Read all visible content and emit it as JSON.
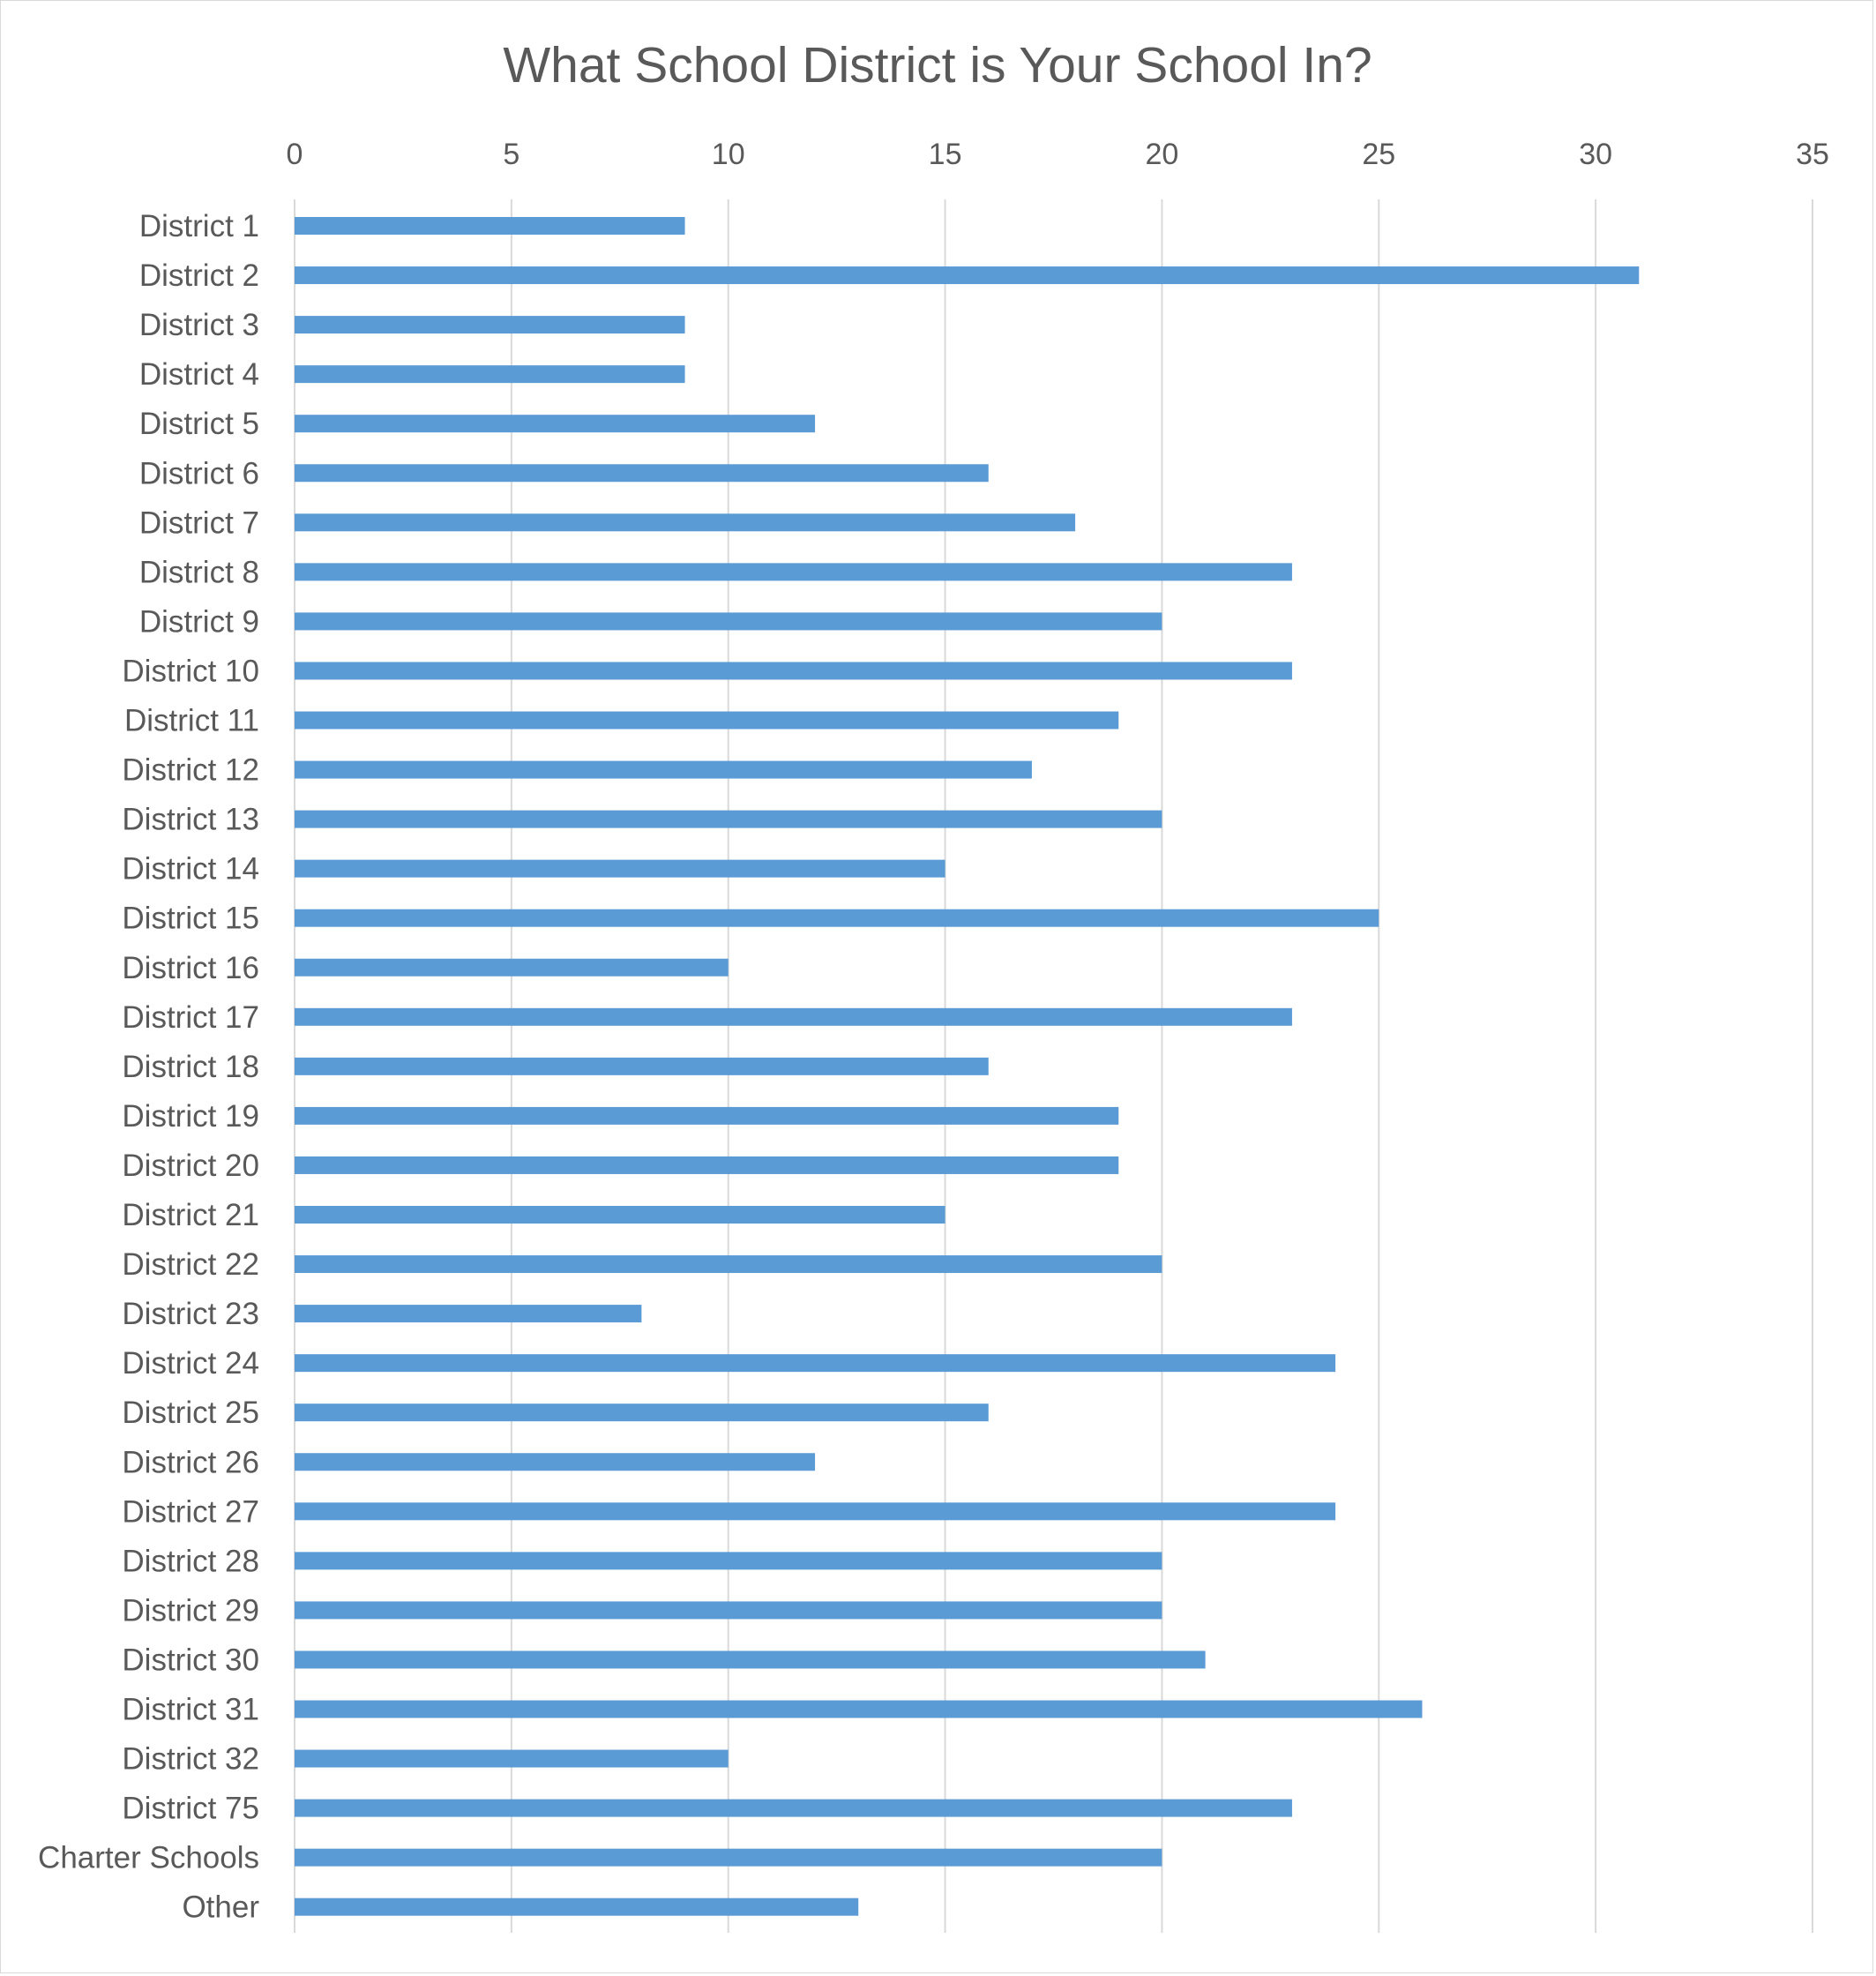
{
  "chart_data": {
    "type": "bar",
    "orientation": "horizontal",
    "title": "What School District is Your School In?",
    "xlabel": "",
    "ylabel": "",
    "xlim": [
      0,
      35
    ],
    "x_ticks": [
      0,
      5,
      10,
      15,
      20,
      25,
      30,
      35
    ],
    "x_axis_position": "top",
    "grid": true,
    "legend": "none",
    "bar_color": "#5b9bd5",
    "gridline_color": "#d9d9d9",
    "text_color": "#595959",
    "categories": [
      "District 1",
      "District 2",
      "District 3",
      "District 4",
      "District 5",
      "District 6",
      "District 7",
      "District 8",
      "District 9",
      "District 10",
      "District 11",
      "District 12",
      "District 13",
      "District 14",
      "District 15",
      "District 16",
      "District 17",
      "District 18",
      "District 19",
      "District 20",
      "District 21",
      "District 22",
      "District 23",
      "District 24",
      "District 25",
      "District 26",
      "District 27",
      "District 28",
      "District 29",
      "District 30",
      "District 31",
      "District 32",
      "District 75",
      "Charter Schools",
      "Other"
    ],
    "values": [
      9,
      31,
      9,
      9,
      12,
      16,
      18,
      23,
      20,
      23,
      19,
      17,
      20,
      15,
      25,
      10,
      23,
      16,
      19,
      19,
      15,
      20,
      8,
      24,
      16,
      12,
      24,
      20,
      20,
      21,
      26,
      10,
      23,
      20,
      13
    ]
  }
}
